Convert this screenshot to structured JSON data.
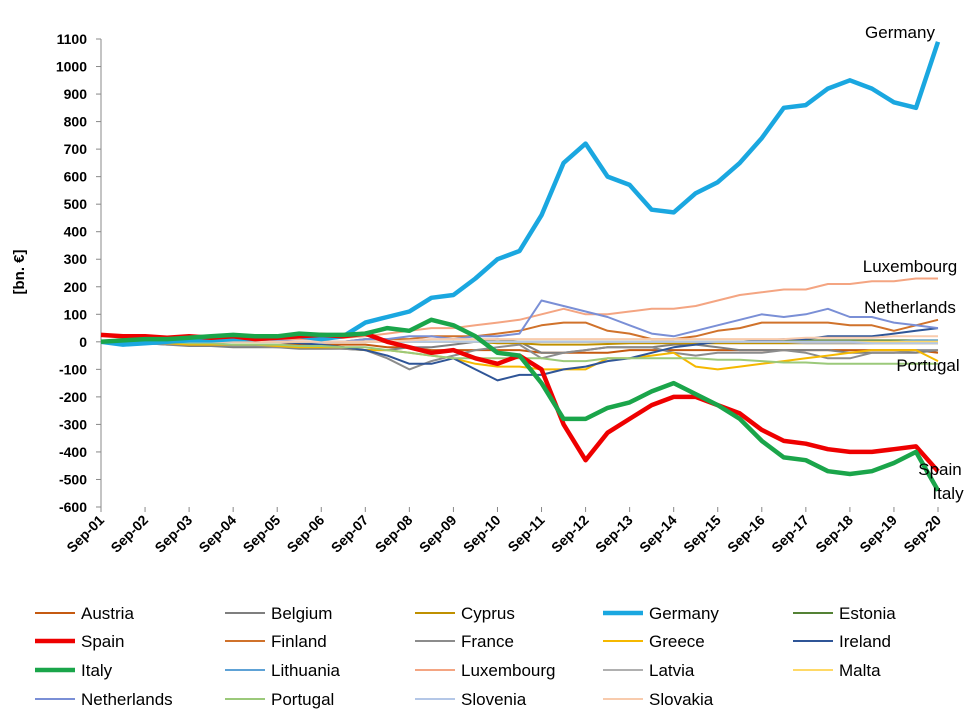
{
  "chart_data": {
    "type": "line",
    "ylabel": "[bn. €]",
    "categories": [
      "Sep-01",
      null,
      "Sep-02",
      null,
      "Sep-03",
      null,
      "Sep-04",
      null,
      "Sep-05",
      null,
      "Sep-06",
      null,
      "Sep-07",
      null,
      "Sep-08",
      null,
      "Sep-09",
      null,
      "Sep-10",
      null,
      "Sep-11",
      null,
      "Sep-12",
      null,
      "Sep-13",
      null,
      "Sep-14",
      null,
      "Sep-15",
      null,
      "Sep-16",
      null,
      "Sep-17",
      null,
      "Sep-18",
      null,
      "Sep-19",
      null,
      "Sep-20"
    ],
    "ylim": [
      -600,
      1100
    ],
    "yticks": [
      -600,
      -500,
      -400,
      -300,
      -200,
      -100,
      0,
      100,
      200,
      300,
      400,
      500,
      600,
      700,
      800,
      900,
      1000,
      1100
    ],
    "grid": false,
    "annotations": [
      "Germany",
      "Luxembourg",
      "Netherlands",
      "Portugal",
      "Spain",
      "Italy"
    ],
    "series": [
      {
        "name": "Austria",
        "color": "#c55a11",
        "width": 2,
        "values": [
          0,
          0,
          -5,
          -5,
          -10,
          -10,
          -10,
          -10,
          -10,
          -10,
          -10,
          -10,
          -10,
          -20,
          -20,
          -30,
          -30,
          -30,
          -30,
          -30,
          -40,
          -40,
          -40,
          -40,
          -30,
          -30,
          -30,
          -30,
          -30,
          -30,
          -30,
          -30,
          -30,
          -30,
          -30,
          -30,
          -30,
          -30,
          -40
        ]
      },
      {
        "name": "Belgium",
        "color": "#7f7f7f",
        "width": 2,
        "values": [
          0,
          0,
          -5,
          -10,
          -15,
          -15,
          -20,
          -20,
          -20,
          -25,
          -25,
          -25,
          -30,
          -30,
          -20,
          -20,
          -10,
          0,
          10,
          0,
          -40,
          -40,
          -30,
          -20,
          -20,
          -20,
          -10,
          -10,
          -20,
          -30,
          -30,
          -30,
          -30,
          -30,
          -40,
          -40,
          -40,
          -40,
          -30
        ]
      },
      {
        "name": "Cyprus",
        "color": "#bf9000",
        "width": 2,
        "values": [
          0,
          0,
          0,
          0,
          0,
          0,
          0,
          0,
          0,
          0,
          0,
          0,
          0,
          0,
          0,
          0,
          0,
          0,
          -5,
          -5,
          -10,
          -10,
          -10,
          -8,
          -5,
          -5,
          -5,
          -5,
          -5,
          -5,
          -5,
          -5,
          -5,
          -5,
          -5,
          -5,
          -5,
          -5,
          -5
        ]
      },
      {
        "name": "Germany",
        "color": "#1aa7e0",
        "width": 4.5,
        "values": [
          0,
          -10,
          -5,
          0,
          5,
          5,
          10,
          10,
          15,
          20,
          10,
          20,
          70,
          90,
          110,
          160,
          170,
          230,
          300,
          330,
          460,
          650,
          720,
          600,
          570,
          480,
          470,
          540,
          580,
          650,
          740,
          850,
          860,
          920,
          950,
          920,
          870,
          850,
          1090
        ]
      },
      {
        "name": "Estonia",
        "color": "#548235",
        "width": 2,
        "values": [
          0,
          0,
          0,
          0,
          0,
          0,
          0,
          0,
          0,
          0,
          0,
          0,
          0,
          0,
          0,
          0,
          0,
          0,
          0,
          0,
          0,
          0,
          0,
          0,
          0,
          0,
          0,
          0,
          0,
          0,
          5,
          5,
          5,
          5,
          5,
          5,
          5,
          5,
          5
        ]
      },
      {
        "name": "Spain",
        "color": "#ee0000",
        "width": 4.5,
        "values": [
          25,
          20,
          20,
          15,
          20,
          15,
          20,
          10,
          15,
          20,
          25,
          20,
          30,
          0,
          -20,
          -40,
          -30,
          -60,
          -80,
          -50,
          -100,
          -300,
          -430,
          -330,
          -280,
          -230,
          -200,
          -200,
          -230,
          -260,
          -320,
          -360,
          -370,
          -390,
          -400,
          -400,
          -390,
          -380,
          -470
        ]
      },
      {
        "name": "Finland",
        "color": "#d0722b",
        "width": 2,
        "values": [
          0,
          0,
          0,
          0,
          0,
          0,
          0,
          0,
          0,
          0,
          0,
          0,
          10,
          10,
          10,
          20,
          20,
          20,
          30,
          40,
          60,
          70,
          70,
          40,
          30,
          10,
          10,
          20,
          40,
          50,
          70,
          70,
          70,
          70,
          60,
          60,
          40,
          60,
          80
        ]
      },
      {
        "name": "France",
        "color": "#8c8c8c",
        "width": 2,
        "values": [
          0,
          -5,
          -5,
          -10,
          -10,
          -10,
          -15,
          -15,
          -20,
          -20,
          -20,
          -25,
          -30,
          -60,
          -100,
          -70,
          -50,
          -30,
          -20,
          -10,
          -60,
          -40,
          -30,
          -20,
          -20,
          -20,
          -40,
          -50,
          -40,
          -40,
          -40,
          -30,
          -40,
          -60,
          -60,
          -40,
          -40,
          -30,
          -30
        ]
      },
      {
        "name": "Greece",
        "color": "#f5b800",
        "width": 2,
        "values": [
          0,
          0,
          -5,
          -5,
          -10,
          -10,
          -10,
          -10,
          -15,
          -20,
          -20,
          -20,
          -30,
          -30,
          -40,
          -50,
          -60,
          -80,
          -90,
          -90,
          -100,
          -100,
          -100,
          -60,
          -60,
          -50,
          -40,
          -90,
          -100,
          -90,
          -80,
          -70,
          -60,
          -50,
          -40,
          -30,
          -30,
          -30,
          -70
        ]
      },
      {
        "name": "Ireland",
        "color": "#2f5597",
        "width": 2,
        "values": [
          0,
          0,
          0,
          0,
          0,
          0,
          0,
          0,
          0,
          -5,
          -10,
          -20,
          -30,
          -50,
          -80,
          -80,
          -60,
          -100,
          -140,
          -120,
          -120,
          -100,
          -90,
          -70,
          -60,
          -40,
          -20,
          -10,
          0,
          0,
          5,
          10,
          10,
          20,
          20,
          20,
          30,
          40,
          50
        ]
      },
      {
        "name": "Italy",
        "color": "#1aa54a",
        "width": 4.5,
        "values": [
          0,
          5,
          10,
          10,
          15,
          20,
          25,
          20,
          20,
          30,
          25,
          25,
          30,
          50,
          40,
          80,
          60,
          20,
          -40,
          -50,
          -150,
          -280,
          -280,
          -240,
          -220,
          -180,
          -150,
          -190,
          -230,
          -280,
          -360,
          -420,
          -430,
          -470,
          -480,
          -470,
          -440,
          -400,
          -540
        ]
      },
      {
        "name": "Lithuania",
        "color": "#5ea2d6",
        "width": 2,
        "values": [
          0,
          0,
          0,
          0,
          0,
          0,
          0,
          0,
          0,
          0,
          0,
          0,
          0,
          0,
          0,
          0,
          0,
          0,
          0,
          0,
          0,
          0,
          0,
          0,
          0,
          0,
          0,
          0,
          0,
          0,
          0,
          0,
          0,
          0,
          0,
          0,
          0,
          5,
          5
        ]
      },
      {
        "name": "Luxembourg",
        "color": "#f4a582",
        "width": 2,
        "values": [
          0,
          0,
          0,
          5,
          5,
          5,
          5,
          10,
          10,
          10,
          10,
          15,
          20,
          30,
          40,
          50,
          50,
          60,
          70,
          80,
          100,
          120,
          100,
          100,
          110,
          120,
          120,
          130,
          150,
          170,
          180,
          190,
          190,
          210,
          210,
          220,
          220,
          230,
          230
        ]
      },
      {
        "name": "Latvia",
        "color": "#b0b0b0",
        "width": 2,
        "values": [
          0,
          0,
          0,
          0,
          0,
          0,
          0,
          0,
          0,
          0,
          0,
          0,
          0,
          0,
          0,
          0,
          0,
          0,
          0,
          0,
          0,
          0,
          0,
          0,
          0,
          0,
          0,
          0,
          0,
          0,
          0,
          0,
          -5,
          -5,
          -5,
          -5,
          0,
          0,
          0
        ]
      },
      {
        "name": "Malta",
        "color": "#ffd966",
        "width": 2,
        "values": [
          0,
          0,
          0,
          0,
          0,
          0,
          0,
          0,
          0,
          0,
          0,
          0,
          0,
          0,
          0,
          0,
          0,
          0,
          0,
          0,
          0,
          0,
          0,
          0,
          0,
          0,
          0,
          0,
          0,
          0,
          0,
          0,
          0,
          0,
          0,
          0,
          0,
          0,
          0
        ]
      },
      {
        "name": "Netherlands",
        "color": "#7a8fd6",
        "width": 2,
        "values": [
          0,
          0,
          0,
          5,
          5,
          0,
          0,
          5,
          5,
          0,
          0,
          0,
          10,
          10,
          20,
          20,
          10,
          20,
          20,
          30,
          150,
          130,
          110,
          90,
          60,
          30,
          20,
          40,
          60,
          80,
          100,
          90,
          100,
          120,
          90,
          90,
          70,
          60,
          50
        ]
      },
      {
        "name": "Portugal",
        "color": "#9bc97a",
        "width": 2,
        "values": [
          0,
          0,
          0,
          0,
          -5,
          -5,
          -10,
          -10,
          -10,
          -15,
          -15,
          -20,
          -20,
          -30,
          -40,
          -50,
          -60,
          -60,
          -60,
          -60,
          -60,
          -70,
          -70,
          -60,
          -60,
          -60,
          -60,
          -60,
          -65,
          -65,
          -70,
          -75,
          -75,
          -80,
          -80,
          -80,
          -80,
          -80,
          -80
        ]
      },
      {
        "name": "Slovenia",
        "color": "#b4c7e7",
        "width": 2,
        "values": [
          0,
          0,
          0,
          0,
          0,
          0,
          0,
          0,
          0,
          0,
          0,
          0,
          0,
          0,
          0,
          0,
          0,
          0,
          0,
          0,
          0,
          0,
          0,
          0,
          0,
          0,
          0,
          0,
          0,
          0,
          0,
          0,
          0,
          0,
          0,
          -5,
          -5,
          -5,
          -5
        ]
      },
      {
        "name": "Slovakia",
        "color": "#f8cbad",
        "width": 2,
        "values": [
          0,
          0,
          0,
          0,
          0,
          0,
          0,
          0,
          0,
          0,
          0,
          0,
          0,
          0,
          5,
          10,
          10,
          10,
          10,
          10,
          10,
          10,
          10,
          10,
          10,
          10,
          10,
          10,
          10,
          10,
          10,
          10,
          15,
          15,
          15,
          15,
          20,
          20,
          20
        ]
      }
    ]
  }
}
